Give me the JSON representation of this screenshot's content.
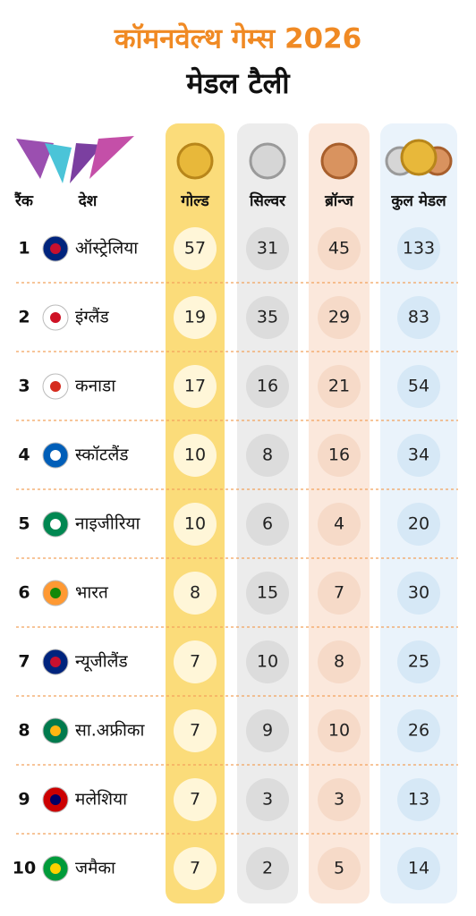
{
  "header": {
    "title": "कॉमनवेल्थ गेम्स 2026",
    "subtitle": "मेडल टैली"
  },
  "table": {
    "columns": [
      "रैंक",
      "देश",
      "गोल्ड",
      "सिल्वर",
      "ब्रॉन्ज",
      "कुल मेडल"
    ],
    "rows": [
      [
        1,
        "ऑस्ट्रेलिया",
        57,
        31,
        45,
        133
      ],
      [
        2,
        "इंग्लैंड",
        19,
        35,
        29,
        83
      ],
      [
        3,
        "कनाडा",
        17,
        16,
        21,
        54
      ],
      [
        4,
        "स्कॉटलैंड",
        10,
        8,
        16,
        34
      ],
      [
        5,
        "नाइजीरिया",
        10,
        6,
        4,
        20
      ],
      [
        6,
        "भारत",
        8,
        15,
        7,
        30
      ],
      [
        7,
        "न्यूजीलैंड",
        7,
        10,
        8,
        25
      ],
      [
        8,
        "सा.अफ्रीका",
        7,
        9,
        10,
        26
      ],
      [
        9,
        "मलेशिया",
        7,
        3,
        3,
        13
      ],
      [
        10,
        "जमैका",
        7,
        2,
        5,
        14
      ]
    ]
  }
}
